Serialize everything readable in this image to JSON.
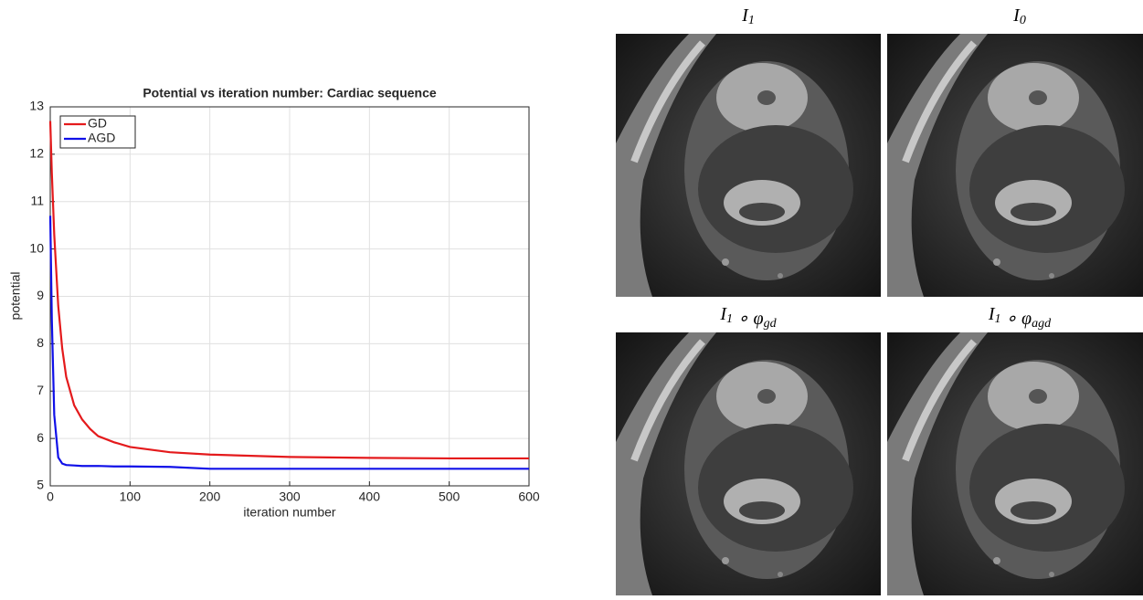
{
  "chart_data": {
    "type": "line",
    "title": "Potential vs iteration number: Cardiac sequence",
    "x_label": "iteration number",
    "y_label": "potential",
    "x": [
      0,
      2,
      5,
      10,
      15,
      20,
      30,
      40,
      50,
      60,
      80,
      100,
      150,
      200,
      300,
      400,
      500,
      600
    ],
    "series": [
      {
        "name": "GD",
        "color": "#e41a1c",
        "values": [
          12.7,
          11.6,
          10.3,
          8.8,
          7.9,
          7.3,
          6.7,
          6.4,
          6.2,
          6.05,
          5.92,
          5.82,
          5.71,
          5.66,
          5.61,
          5.59,
          5.58,
          5.58
        ]
      },
      {
        "name": "AGD",
        "color": "#1010e8",
        "values": [
          10.7,
          8.5,
          6.5,
          5.6,
          5.47,
          5.44,
          5.43,
          5.42,
          5.42,
          5.42,
          5.41,
          5.41,
          5.4,
          5.36,
          5.36,
          5.36,
          5.36,
          5.36
        ]
      }
    ],
    "xlim": [
      0,
      600
    ],
    "xticks": [
      0,
      100,
      200,
      300,
      400,
      500,
      600
    ],
    "ylim": [
      5,
      13
    ],
    "yticks": [
      5,
      6,
      7,
      8,
      9,
      10,
      11,
      12,
      13
    ],
    "grid": true,
    "legend": "upper-left"
  },
  "panels": [
    {
      "main": "I",
      "sub": "1"
    },
    {
      "main": "I",
      "sub": "0"
    },
    {
      "main": "I",
      "sub": "1",
      "op": " ∘ φ",
      "sub2": "gd"
    },
    {
      "main": "I",
      "sub": "1",
      "op": " ∘ φ",
      "sub2": "agd"
    }
  ]
}
